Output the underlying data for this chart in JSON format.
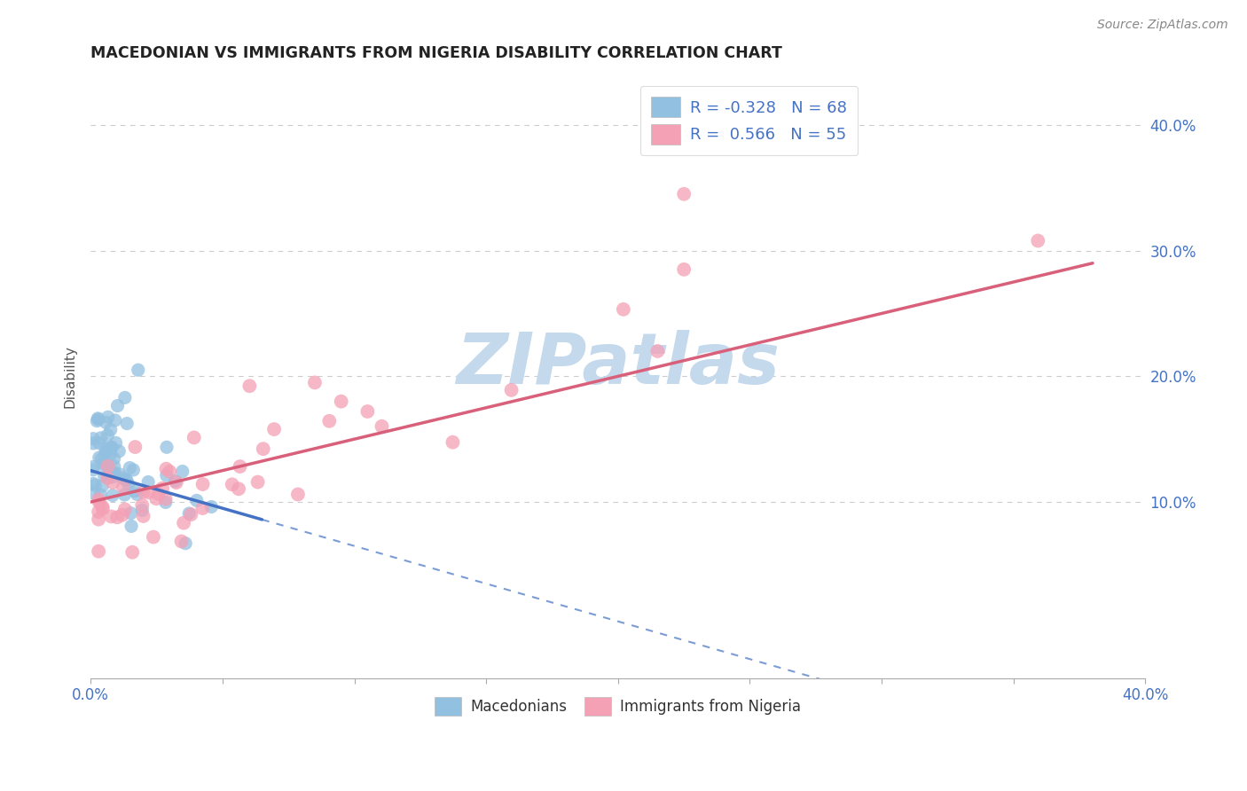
{
  "title": "MACEDONIAN VS IMMIGRANTS FROM NIGERIA DISABILITY CORRELATION CHART",
  "source": "Source: ZipAtlas.com",
  "ylabel": "Disability",
  "ytick_vals": [
    0.1,
    0.2,
    0.3,
    0.4
  ],
  "xlim": [
    0.0,
    0.4
  ],
  "ylim": [
    -0.04,
    0.44
  ],
  "macedonian_r": -0.328,
  "macedonian_n": 68,
  "nigeria_r": 0.566,
  "nigeria_n": 55,
  "blue_color": "#92C0E0",
  "pink_color": "#F4A0B5",
  "blue_line_color": "#4472C4",
  "pink_line_color": "#D9607A",
  "watermark": "ZIPatlas",
  "watermark_color": "#C5D9ED",
  "legend_label_mac": "Macedonians",
  "legend_label_nig": "Immigrants from Nigeria",
  "grid_color": "#CCCCCC",
  "axis_color": "#AAAAAA"
}
